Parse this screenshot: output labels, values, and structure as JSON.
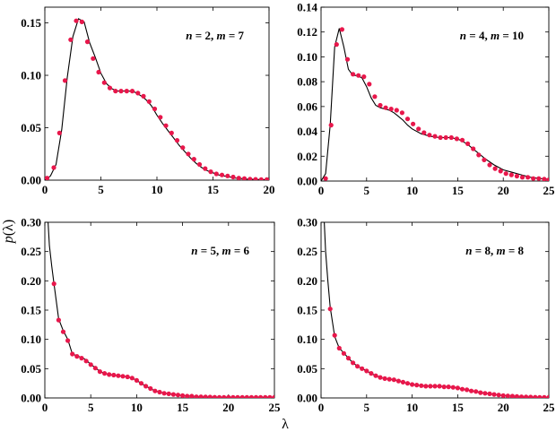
{
  "ylabel": {
    "italic": "p",
    "rest": "(λ)"
  },
  "xlabel": "λ",
  "colors": {
    "points": "#e8174b",
    "curve": "#000000",
    "frame": "#000000"
  },
  "chart_data": [
    {
      "type": "line",
      "annotation": {
        "n": "2",
        "m": "7"
      },
      "xlim": [
        0,
        20
      ],
      "ylim": [
        0,
        0.165
      ],
      "xticks": [
        0,
        5,
        10,
        15,
        20
      ],
      "xtick_labels": [
        "0",
        "5",
        "10",
        "15",
        "20"
      ],
      "yticks": [
        0,
        0.05,
        0.1,
        0.15
      ],
      "ytick_labels": [
        "0.00",
        "0.05",
        "0.10",
        "0.15"
      ],
      "series": [
        {
          "style": "curve",
          "x": [
            0,
            0.5,
            1,
            1.5,
            2,
            2.5,
            3,
            3.5,
            4,
            4.5,
            5,
            5.5,
            6,
            6.5,
            7,
            7.5,
            8,
            8.5,
            9,
            9.5,
            10,
            10.5,
            11,
            11.5,
            12,
            12.5,
            13,
            13.5,
            14,
            14.5,
            15,
            15.5,
            16,
            16.5,
            17,
            17.5,
            18,
            18.5,
            19,
            19.5,
            20
          ],
          "y": [
            0,
            0.004,
            0.015,
            0.048,
            0.098,
            0.137,
            0.154,
            0.151,
            0.131,
            0.117,
            0.102,
            0.092,
            0.087,
            0.085,
            0.085,
            0.085,
            0.084,
            0.081,
            0.077,
            0.071,
            0.062,
            0.054,
            0.047,
            0.04,
            0.033,
            0.027,
            0.021,
            0.016,
            0.012,
            0.009,
            0.007,
            0.005,
            0.004,
            0.003,
            0.002,
            0.0015,
            0.001,
            0.0008,
            0.0006,
            0.0005,
            0.0004
          ]
        },
        {
          "style": "points",
          "x": [
            0.2,
            0.8,
            1.3,
            1.8,
            2.3,
            2.8,
            3.3,
            3.8,
            4.3,
            4.8,
            5.3,
            5.8,
            6.3,
            6.8,
            7.3,
            7.8,
            8.3,
            8.8,
            9.3,
            9.8,
            10.3,
            10.8,
            11.3,
            11.8,
            12.3,
            12.8,
            13.3,
            13.8,
            14.3,
            14.8,
            15.3,
            15.8,
            16.3,
            16.8,
            17.3,
            17.8,
            18.3,
            18.8,
            19.3,
            19.8
          ],
          "y": [
            0.002,
            0.012,
            0.045,
            0.095,
            0.134,
            0.152,
            0.151,
            0.132,
            0.116,
            0.103,
            0.093,
            0.088,
            0.085,
            0.085,
            0.085,
            0.085,
            0.083,
            0.08,
            0.075,
            0.068,
            0.06,
            0.052,
            0.045,
            0.038,
            0.031,
            0.025,
            0.02,
            0.015,
            0.011,
            0.008,
            0.006,
            0.005,
            0.004,
            0.003,
            0.002,
            0.0015,
            0.001,
            0.0008,
            0.0006,
            0.0005
          ]
        }
      ]
    },
    {
      "type": "line",
      "annotation": {
        "n": "4",
        "m": "10"
      },
      "xlim": [
        0,
        25
      ],
      "ylim": [
        0,
        0.14
      ],
      "xticks": [
        0,
        5,
        10,
        15,
        20,
        25
      ],
      "xtick_labels": [
        "0",
        "5",
        "10",
        "15",
        "20",
        "25"
      ],
      "yticks": [
        0,
        0.02,
        0.04,
        0.06,
        0.08,
        0.1,
        0.12,
        0.14
      ],
      "ytick_labels": [
        "0.00",
        "0.02",
        "0.04",
        "0.06",
        "0.08",
        "0.10",
        "0.12",
        "0.14"
      ],
      "series": [
        {
          "style": "curve",
          "x": [
            0,
            0.5,
            1,
            1.5,
            2,
            2.5,
            3,
            3.5,
            4,
            4.5,
            5,
            5.5,
            6,
            6.5,
            7,
            7.5,
            8,
            8.5,
            9,
            9.5,
            10,
            11,
            12,
            13,
            14,
            15,
            16,
            17,
            18,
            19,
            20,
            21,
            22,
            23,
            24,
            25
          ],
          "y": [
            0,
            0.006,
            0.045,
            0.108,
            0.123,
            0.108,
            0.09,
            0.085,
            0.085,
            0.083,
            0.076,
            0.067,
            0.061,
            0.059,
            0.058,
            0.057,
            0.055,
            0.052,
            0.049,
            0.045,
            0.042,
            0.038,
            0.036,
            0.035,
            0.035,
            0.034,
            0.03,
            0.024,
            0.018,
            0.013,
            0.009,
            0.007,
            0.005,
            0.003,
            0.002,
            0.0015
          ]
        },
        {
          "style": "points",
          "x": [
            0.5,
            1.1,
            1.7,
            2.3,
            2.9,
            3.5,
            4.1,
            4.7,
            5.3,
            5.9,
            6.5,
            7.1,
            7.7,
            8.3,
            8.9,
            9.5,
            10.1,
            10.7,
            11.3,
            11.9,
            12.5,
            13.1,
            13.7,
            14.3,
            14.9,
            15.5,
            16.1,
            16.7,
            17.3,
            17.9,
            18.5,
            19.1,
            19.7,
            20.3,
            20.9,
            21.5,
            22.1,
            22.7,
            23.3,
            23.9,
            24.5,
            25
          ],
          "y": [
            0.002,
            0.045,
            0.11,
            0.122,
            0.098,
            0.086,
            0.085,
            0.084,
            0.078,
            0.068,
            0.061,
            0.059,
            0.058,
            0.057,
            0.055,
            0.05,
            0.046,
            0.042,
            0.039,
            0.037,
            0.036,
            0.035,
            0.035,
            0.035,
            0.034,
            0.033,
            0.03,
            0.026,
            0.021,
            0.017,
            0.013,
            0.01,
            0.008,
            0.006,
            0.005,
            0.004,
            0.003,
            0.003,
            0.002,
            0.002,
            0.0015,
            0.001
          ]
        }
      ]
    },
    {
      "type": "line",
      "annotation": {
        "n": "5",
        "m": "6"
      },
      "xlim": [
        0,
        25
      ],
      "ylim": [
        0,
        0.3
      ],
      "xticks": [
        0,
        5,
        10,
        15,
        20,
        25
      ],
      "xtick_labels": [
        "0",
        "5",
        "10",
        "15",
        "20",
        "25"
      ],
      "yticks": [
        0,
        0.05,
        0.1,
        0.15,
        0.2,
        0.25,
        0.3
      ],
      "ytick_labels": [
        "0.00",
        "0.05",
        "0.10",
        "0.15",
        "0.20",
        "0.25",
        "0.30"
      ],
      "series": [
        {
          "style": "curve",
          "x": [
            0.35,
            0.5,
            0.75,
            1,
            1.5,
            2,
            2.5,
            3,
            3.5,
            4,
            4.5,
            5,
            5.5,
            6,
            6.5,
            7,
            7.5,
            8,
            8.5,
            9,
            9.5,
            10,
            10.5,
            11,
            11.5,
            12,
            13,
            14,
            15,
            16,
            17,
            18,
            19,
            20,
            21,
            22,
            23,
            24,
            25
          ],
          "y": [
            0.3,
            0.26,
            0.225,
            0.195,
            0.135,
            0.115,
            0.1,
            0.075,
            0.072,
            0.069,
            0.065,
            0.057,
            0.052,
            0.045,
            0.042,
            0.04,
            0.039,
            0.038,
            0.037,
            0.036,
            0.034,
            0.03,
            0.025,
            0.02,
            0.016,
            0.012,
            0.008,
            0.006,
            0.004,
            0.003,
            0.002,
            0.0015,
            0.001,
            0.001,
            0.001,
            0.001,
            0.001,
            0.001,
            0.001
          ]
        },
        {
          "style": "points",
          "x": [
            1,
            1.5,
            2,
            2.5,
            3,
            3.5,
            4,
            4.5,
            5,
            5.5,
            6,
            6.5,
            7,
            7.5,
            8,
            8.5,
            9,
            9.5,
            10,
            10.5,
            11,
            11.5,
            12,
            12.5,
            13,
            13.5,
            14,
            14.5,
            15,
            15.5,
            16,
            16.5,
            17,
            17.5,
            18,
            18.5,
            19,
            19.5,
            20,
            20.5,
            21,
            21.5,
            22,
            22.5,
            23,
            23.5,
            24,
            24.5,
            25
          ],
          "y": [
            0.195,
            0.133,
            0.113,
            0.098,
            0.075,
            0.071,
            0.068,
            0.063,
            0.057,
            0.051,
            0.045,
            0.042,
            0.04,
            0.039,
            0.038,
            0.037,
            0.036,
            0.034,
            0.03,
            0.025,
            0.02,
            0.016,
            0.012,
            0.01,
            0.008,
            0.007,
            0.006,
            0.005,
            0.004,
            0.003,
            0.003,
            0.002,
            0.002,
            0.0018,
            0.0015,
            0.0012,
            0.001,
            0.001,
            0.001,
            0.001,
            0.001,
            0.001,
            0.001,
            0.001,
            0.001,
            0.001,
            0.001,
            0.001,
            0.001
          ]
        }
      ]
    },
    {
      "type": "line",
      "annotation": {
        "n": "8",
        "m": "8"
      },
      "xlim": [
        0,
        25
      ],
      "ylim": [
        0,
        0.3
      ],
      "xticks": [
        0,
        5,
        10,
        15,
        20,
        25
      ],
      "xtick_labels": [
        "0",
        "5",
        "10",
        "15",
        "20",
        "25"
      ],
      "yticks": [
        0,
        0.05,
        0.1,
        0.15,
        0.2,
        0.25,
        0.3
      ],
      "ytick_labels": [
        "0.00",
        "0.05",
        "0.10",
        "0.15",
        "0.20",
        "0.25",
        "0.30"
      ],
      "series": [
        {
          "style": "curve",
          "x": [
            0.35,
            0.5,
            0.75,
            1,
            1.5,
            2,
            2.5,
            3,
            3.5,
            4,
            4.5,
            5,
            5.5,
            6,
            6.5,
            7,
            7.5,
            8,
            8.5,
            9,
            9.5,
            10,
            11,
            12,
            13,
            14,
            15,
            16,
            17,
            18,
            19,
            20,
            21,
            22,
            23,
            24,
            25
          ],
          "y": [
            0.3,
            0.25,
            0.2,
            0.155,
            0.105,
            0.085,
            0.077,
            0.068,
            0.06,
            0.054,
            0.05,
            0.046,
            0.042,
            0.038,
            0.035,
            0.033,
            0.032,
            0.031,
            0.029,
            0.027,
            0.025,
            0.023,
            0.021,
            0.02,
            0.02,
            0.019,
            0.017,
            0.014,
            0.011,
            0.008,
            0.006,
            0.004,
            0.003,
            0.002,
            0.0015,
            0.001,
            0.001
          ]
        },
        {
          "style": "points",
          "x": [
            1,
            1.5,
            2,
            2.5,
            3,
            3.5,
            4,
            4.5,
            5,
            5.5,
            6,
            6.5,
            7,
            7.5,
            8,
            8.5,
            9,
            9.5,
            10,
            10.5,
            11,
            11.5,
            12,
            12.5,
            13,
            13.5,
            14,
            14.5,
            15,
            15.5,
            16,
            16.5,
            17,
            17.5,
            18,
            18.5,
            19,
            19.5,
            20,
            20.5,
            21,
            21.5,
            22,
            22.5,
            23,
            23.5,
            24,
            24.5,
            25
          ],
          "y": [
            0.152,
            0.107,
            0.085,
            0.076,
            0.068,
            0.06,
            0.054,
            0.05,
            0.046,
            0.042,
            0.038,
            0.035,
            0.033,
            0.032,
            0.031,
            0.029,
            0.027,
            0.025,
            0.023,
            0.022,
            0.021,
            0.02,
            0.02,
            0.02,
            0.02,
            0.019,
            0.019,
            0.018,
            0.017,
            0.015,
            0.014,
            0.012,
            0.011,
            0.009,
            0.008,
            0.007,
            0.006,
            0.005,
            0.004,
            0.0035,
            0.003,
            0.0025,
            0.002,
            0.0018,
            0.0015,
            0.0012,
            0.001,
            0.001,
            0.001
          ]
        }
      ]
    }
  ]
}
